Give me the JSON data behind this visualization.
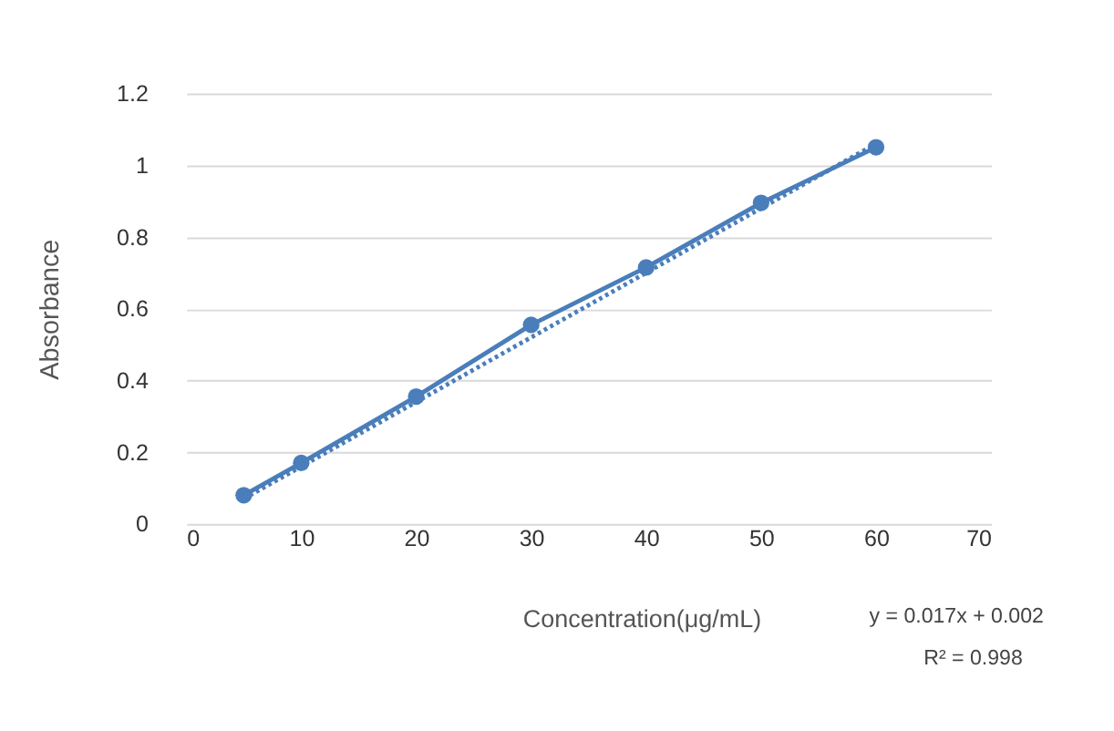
{
  "chart_data": {
    "type": "line",
    "xlabel": "Concentration(μg/mL)",
    "ylabel": "Absorbance",
    "series": [
      {
        "color": "#4a7ebb",
        "x": [
          5,
          10,
          20,
          30,
          40,
          50,
          60
        ],
        "values": [
          0.08,
          0.17,
          0.355,
          0.555,
          0.715,
          0.895,
          1.05
        ],
        "marker": "circle",
        "line_style": "solid"
      },
      {
        "color": "#4a7ebb",
        "x": [
          5,
          60
        ],
        "values": [
          0.07,
          1.06
        ],
        "marker": "none",
        "line_style": "dotted"
      }
    ],
    "xlim": [
      0,
      70
    ],
    "xticks": [
      0,
      10,
      20,
      30,
      40,
      50,
      60,
      70
    ],
    "ylim": [
      0,
      1.2
    ],
    "yticks": [
      0,
      0.2,
      0.4,
      0.6,
      0.8,
      1,
      1.2
    ],
    "grid": "y",
    "annotations": [
      "y = 0.017x + 0.002",
      "R² = 0.998"
    ]
  }
}
